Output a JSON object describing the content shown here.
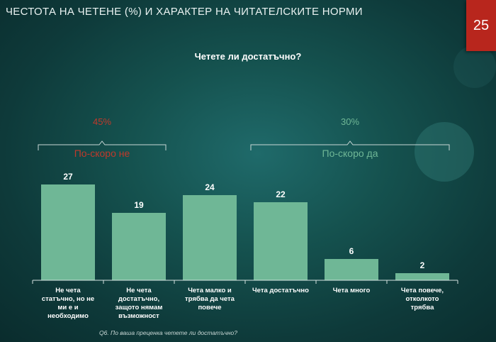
{
  "header": {
    "title": "ЧЕСТОТА НА ЧЕТЕНЕ (%)  И ХАРАКТЕР НА ЧИТАТЕЛСКИТЕ НОРМИ",
    "page_number": "25"
  },
  "footnote": "Q6. По ваша преценка четете ли достатъчно?",
  "colors": {
    "bar": "#6fb796",
    "negative": "#c0392b",
    "positive": "#6fb796"
  },
  "chart_data": {
    "type": "bar",
    "title": "Четете ли достатъчно?",
    "categories": [
      [
        "Не чета",
        "статъчно, но не",
        "ми е и",
        "необходимо"
      ],
      [
        "Не чета",
        "достатъчно,",
        "защото нямам",
        "възможност"
      ],
      [
        "Чета малко и",
        "трябва да чета",
        "повече"
      ],
      [
        "Чета достатъчно"
      ],
      [
        "Чета много"
      ],
      [
        "Чета повече,",
        "отколкото",
        "трябва"
      ]
    ],
    "values": [
      27,
      19,
      24,
      22,
      6,
      2
    ],
    "ylim": [
      0,
      30
    ],
    "groups": [
      {
        "percent": "45%",
        "label": "По-скоро не",
        "color": "#c0392b",
        "from": 0,
        "to": 1
      },
      {
        "percent": "30%",
        "label": "По-скоро да",
        "color": "#6fb796",
        "from": 3,
        "to": 5
      }
    ]
  }
}
